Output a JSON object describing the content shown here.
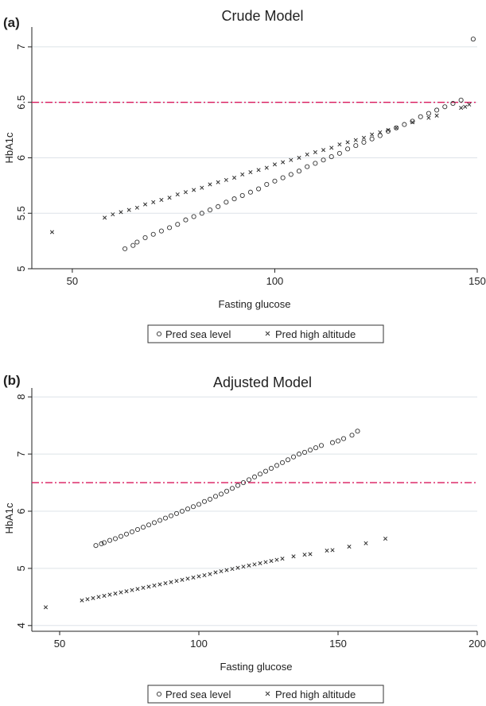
{
  "chart_data": [
    {
      "type": "scatter",
      "panel_label": "(a)",
      "title": "Crude Model",
      "xlabel": "Fasting glucose",
      "ylabel": "HbA1c",
      "xlim": [
        40,
        150
      ],
      "ylim": [
        5,
        7.15
      ],
      "xticks": [
        50,
        100,
        150
      ],
      "yticks": [
        5,
        5.5,
        6,
        6.5,
        7
      ],
      "reference_line": {
        "y": 6.5,
        "color": "#d9185c"
      },
      "grid": true,
      "legend_position": "bottom",
      "series": [
        {
          "name": "Pred sea level",
          "marker": "circle",
          "x": [
            63,
            65,
            66,
            68,
            70,
            72,
            74,
            76,
            78,
            80,
            82,
            84,
            86,
            88,
            90,
            92,
            94,
            96,
            98,
            100,
            102,
            104,
            106,
            108,
            110,
            112,
            114,
            116,
            118,
            120,
            122,
            124,
            126,
            128,
            130,
            132,
            134,
            136,
            138,
            140,
            142,
            144,
            146,
            149
          ],
          "y": [
            5.18,
            5.21,
            5.24,
            5.28,
            5.31,
            5.34,
            5.37,
            5.4,
            5.44,
            5.47,
            5.5,
            5.53,
            5.56,
            5.6,
            5.63,
            5.66,
            5.69,
            5.72,
            5.76,
            5.79,
            5.82,
            5.85,
            5.88,
            5.92,
            5.95,
            5.98,
            6.01,
            6.04,
            6.08,
            6.11,
            6.14,
            6.17,
            6.2,
            6.24,
            6.27,
            6.3,
            6.33,
            6.37,
            6.4,
            6.43,
            6.46,
            6.49,
            6.52,
            7.07
          ]
        },
        {
          "name": "Pred high altitude",
          "marker": "cross",
          "x": [
            45,
            58,
            60,
            62,
            64,
            66,
            68,
            70,
            72,
            74,
            76,
            78,
            80,
            82,
            84,
            86,
            88,
            90,
            92,
            94,
            96,
            98,
            100,
            102,
            104,
            106,
            108,
            110,
            112,
            114,
            116,
            118,
            120,
            122,
            124,
            126,
            128,
            130,
            134,
            138,
            140,
            146,
            147,
            148
          ],
          "y": [
            5.33,
            5.46,
            5.49,
            5.51,
            5.53,
            5.55,
            5.58,
            5.6,
            5.62,
            5.64,
            5.67,
            5.69,
            5.71,
            5.73,
            5.76,
            5.78,
            5.8,
            5.82,
            5.85,
            5.87,
            5.89,
            5.91,
            5.94,
            5.96,
            5.98,
            6.0,
            6.03,
            6.05,
            6.07,
            6.09,
            6.12,
            6.14,
            6.16,
            6.18,
            6.21,
            6.23,
            6.25,
            6.27,
            6.32,
            6.36,
            6.38,
            6.45,
            6.46,
            6.48
          ]
        }
      ],
      "sea_y_linear": true
    },
    {
      "type": "scatter",
      "panel_label": "(b)",
      "title": "Adjusted Model",
      "xlabel": "Fasting glucose",
      "ylabel": "HbA1c",
      "xlim": [
        40,
        200
      ],
      "ylim": [
        3.9,
        8.1
      ],
      "xticks": [
        50,
        100,
        150,
        200
      ],
      "yticks": [
        4,
        5,
        6,
        7,
        8
      ],
      "reference_line": {
        "y": 6.5,
        "color": "#d9185c"
      },
      "grid": true,
      "legend_position": "bottom",
      "series": [
        {
          "name": "Pred sea level",
          "marker": "circle",
          "x": [
            63,
            65,
            66,
            68,
            70,
            72,
            74,
            76,
            78,
            80,
            82,
            84,
            86,
            88,
            90,
            92,
            94,
            96,
            98,
            100,
            102,
            104,
            106,
            108,
            110,
            112,
            114,
            116,
            118,
            120,
            122,
            124,
            126,
            128,
            130,
            132,
            134,
            136,
            138,
            140,
            142,
            144,
            148,
            150,
            152,
            155,
            157
          ],
          "y": [
            5.4,
            5.43,
            5.45,
            5.49,
            5.52,
            5.56,
            5.6,
            5.64,
            5.68,
            5.72,
            5.76,
            5.8,
            5.84,
            5.88,
            5.92,
            5.96,
            6.0,
            6.04,
            6.08,
            6.12,
            6.17,
            6.21,
            6.26,
            6.3,
            6.35,
            6.4,
            6.45,
            6.5,
            6.55,
            6.6,
            6.65,
            6.7,
            6.75,
            6.8,
            6.85,
            6.9,
            6.95,
            7.0,
            7.03,
            7.07,
            7.11,
            7.15,
            7.2,
            7.23,
            7.27,
            7.33,
            7.4
          ]
        },
        {
          "name": "Pred high altitude",
          "marker": "cross",
          "x": [
            45,
            58,
            60,
            62,
            64,
            66,
            68,
            70,
            72,
            74,
            76,
            78,
            80,
            82,
            84,
            86,
            88,
            90,
            92,
            94,
            96,
            98,
            100,
            102,
            104,
            106,
            108,
            110,
            112,
            114,
            116,
            118,
            120,
            122,
            124,
            126,
            128,
            130,
            134,
            138,
            140,
            146,
            148,
            154,
            160,
            167
          ],
          "y": [
            4.32,
            4.44,
            4.46,
            4.48,
            4.5,
            4.52,
            4.54,
            4.56,
            4.58,
            4.6,
            4.62,
            4.64,
            4.66,
            4.68,
            4.7,
            4.72,
            4.74,
            4.76,
            4.78,
            4.8,
            4.82,
            4.84,
            4.86,
            4.88,
            4.9,
            4.93,
            4.95,
            4.97,
            4.99,
            5.01,
            5.03,
            5.05,
            5.07,
            5.09,
            5.11,
            5.13,
            5.15,
            5.17,
            5.21,
            5.24,
            5.25,
            5.31,
            5.32,
            5.38,
            5.44,
            5.52
          ]
        }
      ]
    }
  ]
}
